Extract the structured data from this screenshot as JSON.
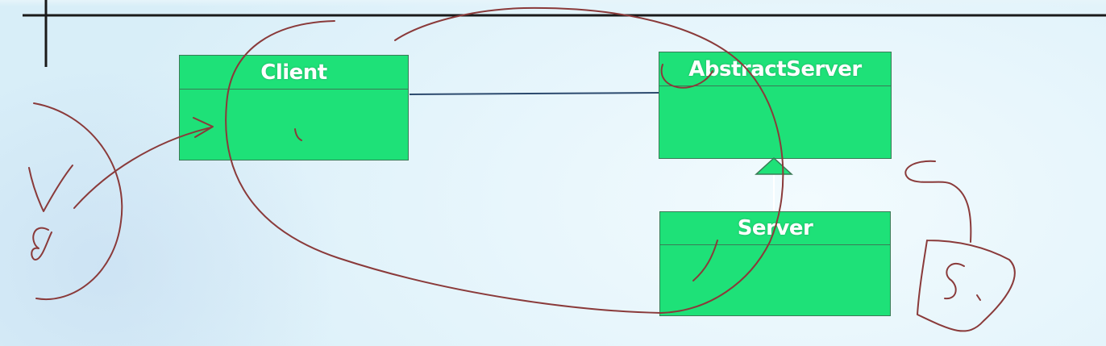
{
  "diagram": {
    "classes": [
      {
        "id": "client",
        "name": "Client"
      },
      {
        "id": "abstractserver",
        "name": "AbstractServer"
      },
      {
        "id": "server",
        "name": "Server"
      }
    ],
    "relations": [
      {
        "type": "association",
        "from": "Client",
        "to": "AbstractServer"
      },
      {
        "type": "generalization",
        "from": "Server",
        "to": "AbstractServer"
      }
    ],
    "colors": {
      "class_fill": "#1ee178",
      "class_border": "#3a7a56",
      "association_line": "#2c4a6e",
      "annotation_ink": "#8a3a3a"
    }
  }
}
